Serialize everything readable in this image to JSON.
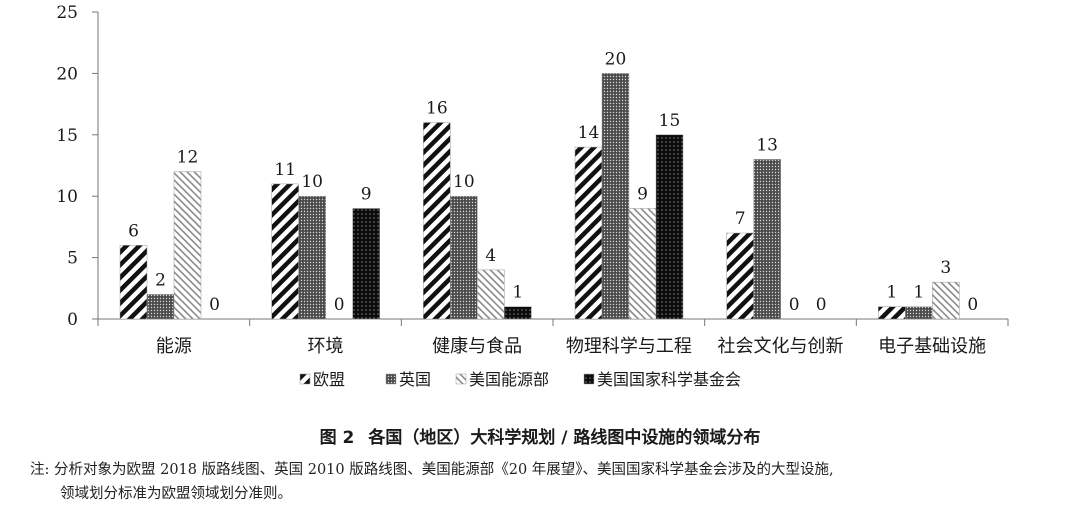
{
  "chart_data": {
    "type": "bar",
    "categories": [
      "能源",
      "环境",
      "健康与食品",
      "物理科学与工程",
      "社会文化与创新",
      "电子基础设施"
    ],
    "series": [
      {
        "name": "欧盟",
        "values": [
          6,
          11,
          16,
          14,
          7,
          1
        ],
        "pattern": "diagonal-thick"
      },
      {
        "name": "英国",
        "values": [
          2,
          10,
          10,
          20,
          13,
          1
        ],
        "pattern": "dense-dots"
      },
      {
        "name": "美国能源部",
        "values": [
          12,
          0,
          4,
          9,
          0,
          3
        ],
        "pattern": "diagonal-thin"
      },
      {
        "name": "美国国家科学基金会",
        "values": [
          0,
          9,
          1,
          15,
          0,
          0
        ],
        "pattern": "dark-dots"
      }
    ],
    "data_labels": [
      [
        "6",
        "11",
        "16",
        "14",
        "7",
        "1"
      ],
      [
        "2",
        "10",
        "10",
        "20",
        "13",
        "1"
      ],
      [
        "12",
        "0",
        "4",
        "9",
        "0",
        "3"
      ],
      [
        "0",
        "9",
        "1",
        "15",
        "0",
        "0"
      ]
    ],
    "ylim": [
      0,
      25
    ],
    "yticks": [
      "0",
      "5",
      "10",
      "15",
      "20",
      "25"
    ],
    "legend_position": "bottom",
    "grid": false
  },
  "caption": {
    "number": "图 2",
    "title": "各国（地区）大科学规划 / 路线图中设施的领域分布"
  },
  "note": {
    "prefix": "注:",
    "line1": "分析对象为欧盟 2018 版路线图、英国 2010 版路线图、美国能源部《20 年展望》、美国国家科学基金会涉及的大型设施,",
    "line2": "领域划分标准为欧盟领域划分准则。"
  }
}
